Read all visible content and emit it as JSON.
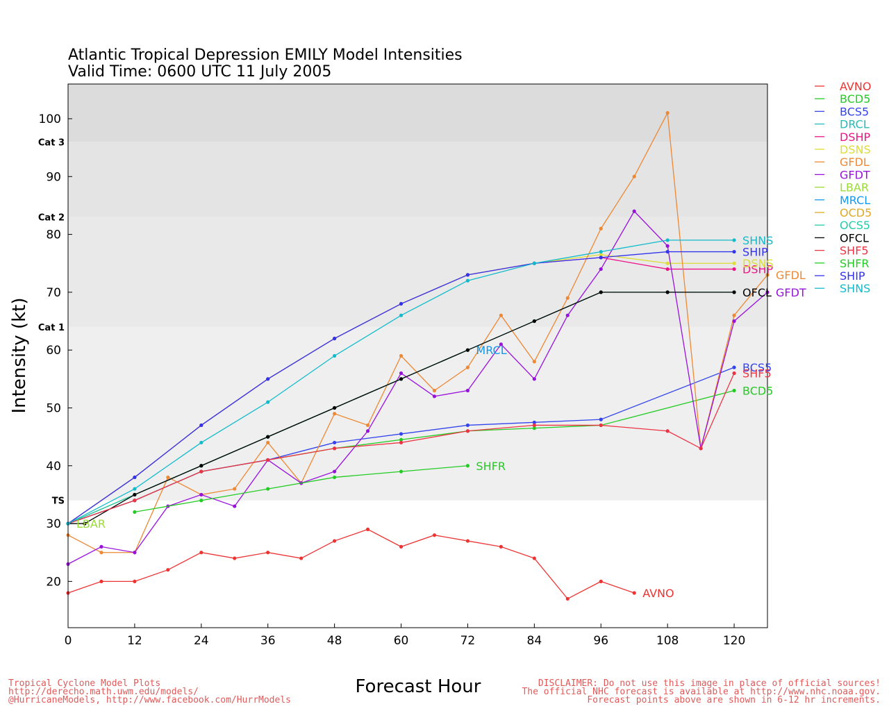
{
  "chart_data": {
    "type": "line",
    "title": "Atlantic Tropical Depression EMILY Model Intensities",
    "subtitle": "Valid Time: 0600 UTC 11 July 2005",
    "xlabel": "Forecast Hour",
    "ylabel": "Intensity (kt)",
    "xlim": [
      0,
      126
    ],
    "ylim": [
      12,
      106
    ],
    "xticks": [
      0,
      12,
      24,
      36,
      48,
      60,
      72,
      84,
      96,
      108,
      120
    ],
    "yticks": [
      20,
      30,
      40,
      50,
      60,
      70,
      80,
      90,
      100
    ],
    "bands": [
      {
        "label": "TS",
        "from": 34,
        "to": 64,
        "color": "#efefef"
      },
      {
        "label": "Cat 1",
        "from": 64,
        "to": 83,
        "color": "#e9e9e9"
      },
      {
        "label": "Cat 2",
        "from": 83,
        "to": 96,
        "color": "#e4e4e4"
      },
      {
        "label": "Cat 3",
        "from": 96,
        "to": 106,
        "color": "#dcdcdc"
      }
    ],
    "legend_position": "right",
    "series": [
      {
        "name": "AVNO",
        "color": "#ee3333",
        "x": [
          0,
          6,
          12,
          18,
          24,
          30,
          36,
          42,
          48,
          54,
          60,
          66,
          72,
          78,
          84,
          90,
          96,
          102
        ],
        "y": [
          18,
          20,
          20,
          22,
          25,
          24,
          25,
          24,
          27,
          29,
          26,
          28,
          27,
          26,
          24,
          17,
          20,
          18
        ],
        "end_label": "AVNO"
      },
      {
        "name": "BCD5",
        "color": "#22cc22",
        "x": [
          0,
          12,
          24,
          36,
          48,
          60,
          72,
          84,
          96,
          120
        ],
        "y": [
          30,
          34,
          39,
          41,
          43,
          44.5,
          46,
          46.5,
          47,
          53
        ],
        "end_label": "BCD5"
      },
      {
        "name": "BCS5",
        "color": "#3344ee",
        "x": [
          0,
          12,
          24,
          36,
          48,
          60,
          72,
          84,
          96,
          120
        ],
        "y": [
          30,
          34,
          39,
          41,
          44,
          45.5,
          47,
          47.5,
          48,
          57
        ],
        "end_label": "BCS5"
      },
      {
        "name": "DRCL",
        "color": "#22bbbb",
        "x": [
          0,
          12,
          24,
          36,
          48,
          60,
          72
        ],
        "y": [
          30,
          35,
          40,
          45,
          50,
          55,
          60
        ],
        "end_label": ""
      },
      {
        "name": "DSHP",
        "color": "#ee1188",
        "x": [
          0,
          12,
          24,
          36,
          48,
          60,
          72,
          84,
          96,
          108,
          120
        ],
        "y": [
          30,
          38,
          47,
          55,
          62,
          68,
          73,
          75,
          76,
          74,
          74
        ],
        "end_label": "DSHP"
      },
      {
        "name": "DSNS",
        "color": "#dddd33",
        "x": [
          0,
          12,
          24,
          36,
          48,
          60,
          72,
          84,
          96,
          108,
          120
        ],
        "y": [
          30,
          38,
          47,
          55,
          62,
          68,
          73,
          75,
          76.5,
          75,
          75
        ],
        "end_label": "DSNS"
      },
      {
        "name": "GFDL",
        "color": "#ee8833",
        "x": [
          0,
          6,
          12,
          18,
          24,
          30,
          36,
          42,
          48,
          54,
          60,
          66,
          72,
          78,
          84,
          90,
          96,
          102,
          108,
          114,
          120,
          126
        ],
        "y": [
          28,
          25,
          25,
          38,
          35,
          36,
          44,
          37,
          49,
          47,
          59,
          53,
          57,
          66,
          58,
          69,
          81,
          90,
          101,
          43,
          66,
          73
        ],
        "end_label": "GFDL"
      },
      {
        "name": "GFDT",
        "color": "#9911dd",
        "x": [
          0,
          6,
          12,
          18,
          24,
          30,
          36,
          42,
          48,
          54,
          60,
          66,
          72,
          78,
          84,
          90,
          96,
          102,
          108,
          114,
          120,
          126
        ],
        "y": [
          23,
          26,
          25,
          33,
          35,
          33,
          41,
          37,
          39,
          46,
          56,
          52,
          53,
          61,
          55,
          66,
          74,
          84,
          78,
          43,
          65,
          70
        ],
        "end_label": "GFDT"
      },
      {
        "name": "LBAR",
        "color": "#99dd33",
        "x": [
          0
        ],
        "y": [
          30
        ],
        "end_label": "LBAR"
      },
      {
        "name": "MRCL",
        "color": "#1199ee",
        "x": [
          0,
          12,
          24,
          36,
          48,
          60,
          72
        ],
        "y": [
          30,
          35,
          40,
          45,
          50,
          55,
          60
        ],
        "end_label": "MRCL"
      },
      {
        "name": "OCD5",
        "color": "#ddaa22",
        "x": [
          0,
          12,
          24,
          36,
          48,
          60,
          72
        ],
        "y": [
          30,
          35,
          40,
          45,
          50,
          55,
          60
        ],
        "end_label": ""
      },
      {
        "name": "OCS5",
        "color": "#22ccaa",
        "x": [
          0,
          12,
          24,
          36,
          48,
          60,
          72,
          84,
          96,
          108,
          120
        ],
        "y": [
          30,
          35,
          40,
          45,
          50,
          55,
          60,
          65,
          70,
          70,
          70
        ],
        "end_label": ""
      },
      {
        "name": "OFCL",
        "color": "#000000",
        "x": [
          0,
          3,
          12,
          24,
          36,
          48,
          60,
          72,
          84,
          96,
          108,
          120
        ],
        "y": [
          30,
          30,
          35,
          40,
          45,
          50,
          55,
          60,
          65,
          70,
          70,
          70
        ],
        "end_label": "OFCL"
      },
      {
        "name": "SHF5",
        "color": "#ee3344",
        "x": [
          0,
          12,
          24,
          36,
          48,
          60,
          72,
          84,
          96,
          108,
          114,
          120
        ],
        "y": [
          30,
          34,
          39,
          41,
          43,
          44,
          46,
          47,
          47,
          46,
          43,
          56
        ],
        "end_label": "SHF5"
      },
      {
        "name": "SHFR",
        "color": "#22cc22",
        "x": [
          12,
          24,
          36,
          48,
          60,
          72
        ],
        "y": [
          32,
          34,
          36,
          38,
          39,
          40
        ],
        "end_label": "SHFR"
      },
      {
        "name": "SHIP",
        "color": "#3333ee",
        "x": [
          0,
          12,
          24,
          36,
          48,
          60,
          72,
          84,
          96,
          108,
          120
        ],
        "y": [
          30,
          38,
          47,
          55,
          62,
          68,
          73,
          75,
          76,
          77,
          77
        ],
        "end_label": "SHIP"
      },
      {
        "name": "SHNS",
        "color": "#11bbcc",
        "x": [
          0,
          12,
          24,
          36,
          48,
          60,
          72,
          84,
          96,
          108,
          120
        ],
        "y": [
          30,
          36,
          44,
          51,
          59,
          66,
          72,
          75,
          77,
          79,
          79
        ],
        "end_label": "SHNS"
      }
    ]
  },
  "footer": {
    "left_lines": [
      "Tropical Cyclone Model Plots",
      "http://derecho.math.uwm.edu/models/",
      "@HurricaneModels, http://www.facebook.com/HurrModels"
    ],
    "right_lines": [
      "DISCLAIMER: Do not use this image in place of official sources!",
      "The official NHC forecast is available at http://www.nhc.noaa.gov.",
      "Forecast points above are shown in 6-12 hr increments."
    ]
  }
}
